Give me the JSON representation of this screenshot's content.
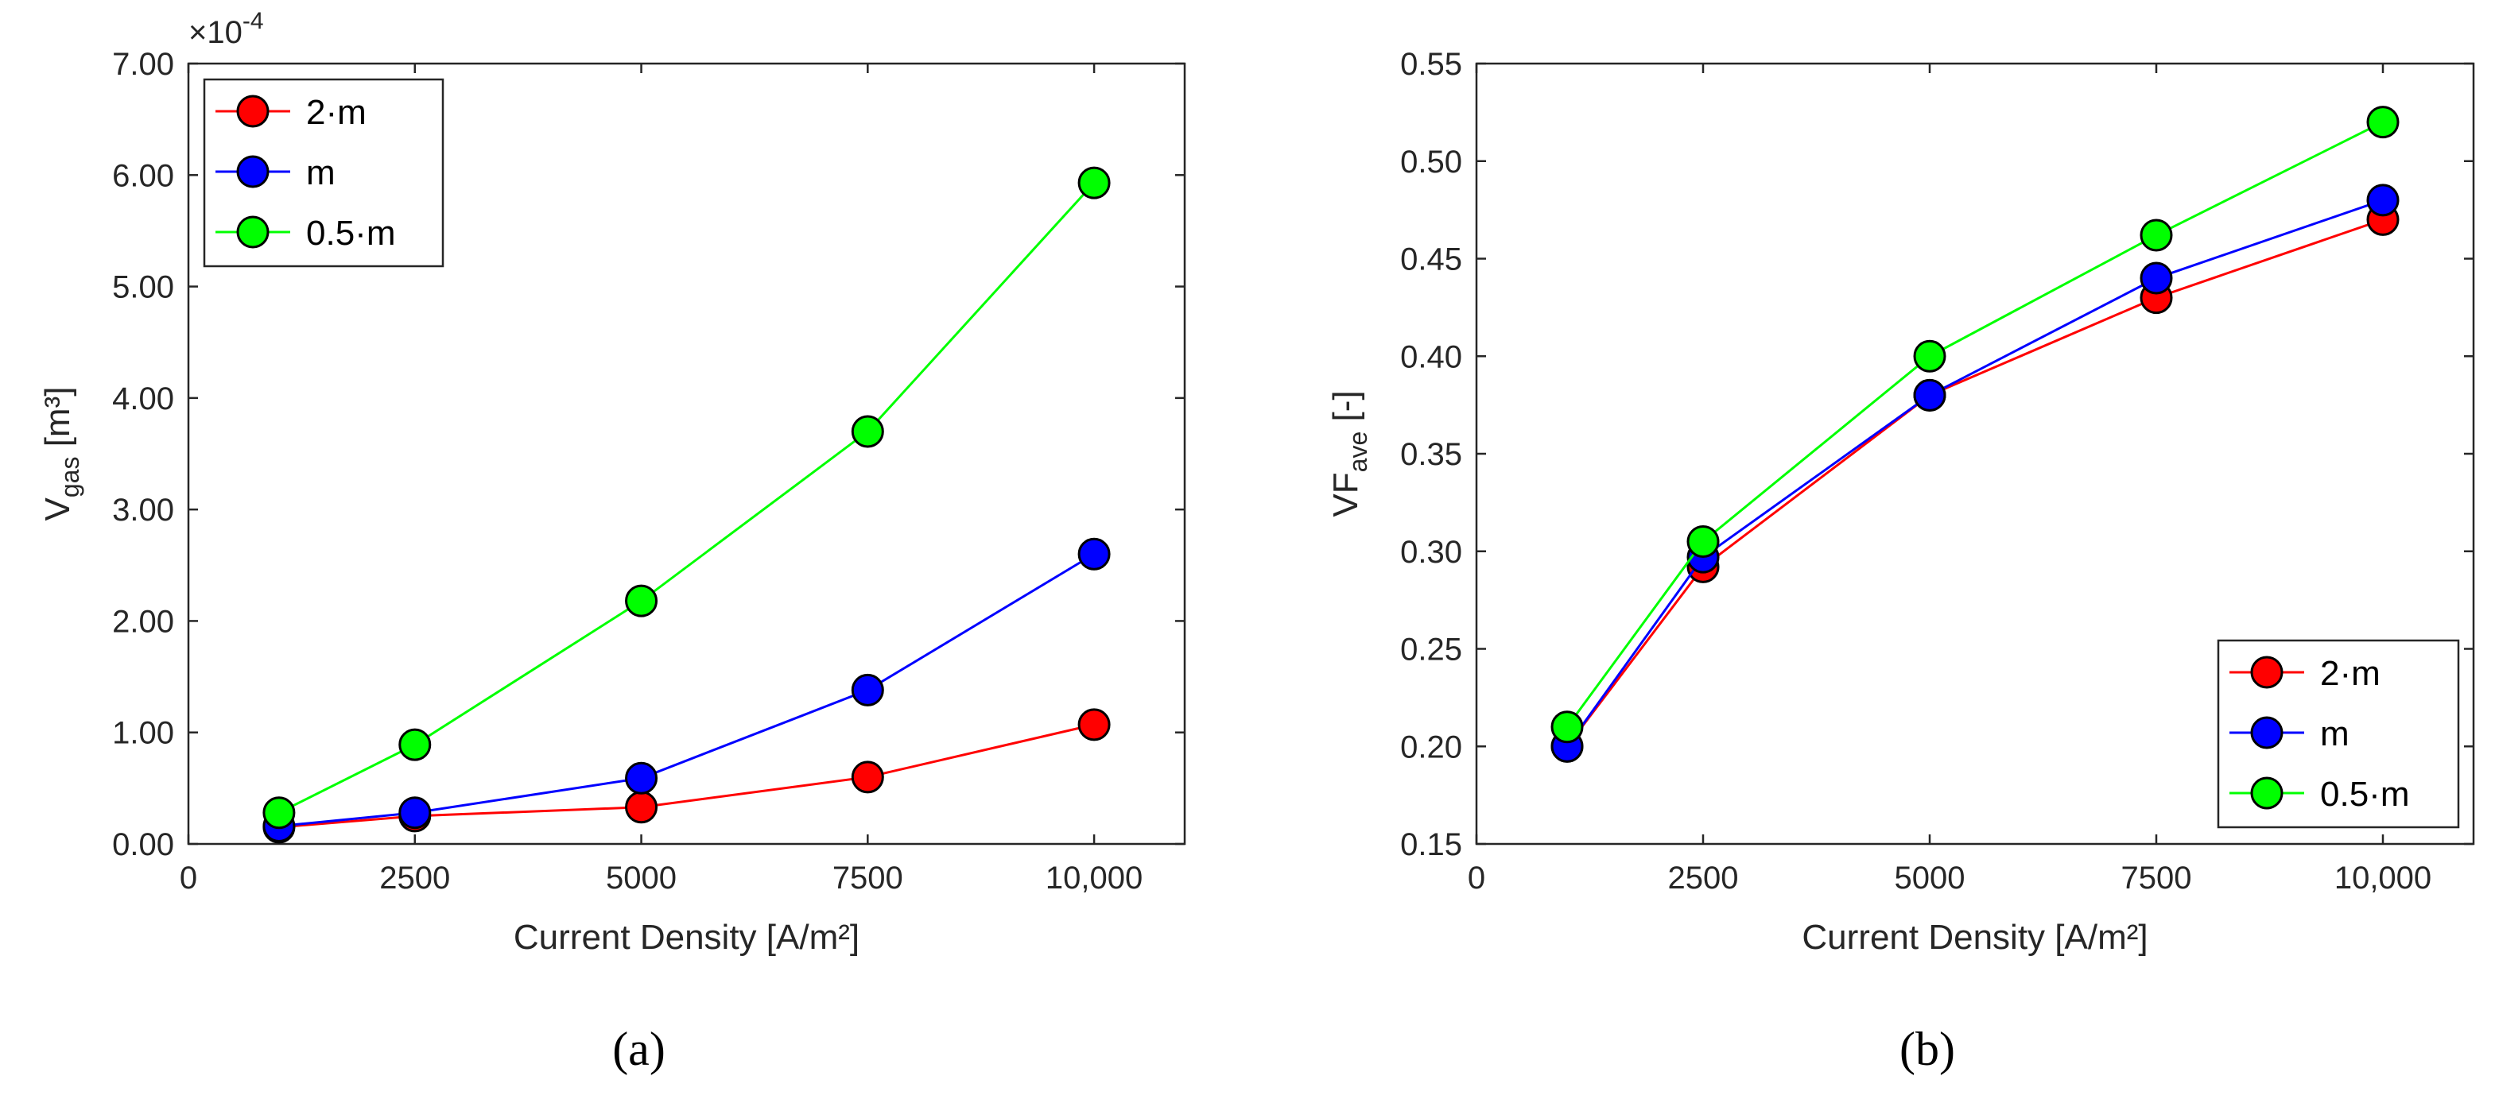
{
  "chart_data": [
    {
      "type": "line",
      "caption": "(a)",
      "xlabel": "Current Density [A/m²]",
      "ylabel_main": "V",
      "ylabel_sub": "gas",
      "ylabel_unit": " [m³]",
      "y_multiplier": "×10",
      "y_exponent": "-4",
      "x": [
        1000,
        2500,
        5000,
        7500,
        10000
      ],
      "xlim": [
        0,
        11000
      ],
      "ylim": [
        0,
        7
      ],
      "xticks": [
        0,
        2500,
        5000,
        7500,
        10000
      ],
      "xtick_labels": [
        "0",
        "2500",
        "5000",
        "7500",
        "10,000"
      ],
      "yticks": [
        0,
        1,
        2,
        3,
        4,
        5,
        6,
        7
      ],
      "ytick_labels": [
        "0.00",
        "1.00",
        "2.00",
        "3.00",
        "4.00",
        "5.00",
        "6.00",
        "7.00"
      ],
      "legend_position": "top-left",
      "series": [
        {
          "name": "2·m",
          "color": "#ff0000",
          "values": [
            0.15,
            0.25,
            0.33,
            0.6,
            1.07
          ]
        },
        {
          "name": "m",
          "color": "#0000ff",
          "values": [
            0.16,
            0.28,
            0.59,
            1.38,
            2.6
          ]
        },
        {
          "name": "0.5·m",
          "color": "#00ff00",
          "values": [
            0.28,
            0.89,
            2.18,
            3.7,
            5.93
          ]
        }
      ]
    },
    {
      "type": "line",
      "caption": "(b)",
      "xlabel": "Current Density [A/m²]",
      "ylabel_main": "VF",
      "ylabel_sub": "ave",
      "ylabel_unit": " [-]",
      "x": [
        1000,
        2500,
        5000,
        7500,
        10000
      ],
      "xlim": [
        0,
        11000
      ],
      "ylim": [
        0.15,
        0.55
      ],
      "xticks": [
        0,
        2500,
        5000,
        7500,
        10000
      ],
      "xtick_labels": [
        "0",
        "2500",
        "5000",
        "7500",
        "10,000"
      ],
      "yticks": [
        0.15,
        0.2,
        0.25,
        0.3,
        0.35,
        0.4,
        0.45,
        0.5,
        0.55
      ],
      "ytick_labels": [
        "0.15",
        "0.20",
        "0.25",
        "0.30",
        "0.35",
        "0.40",
        "0.45",
        "0.50",
        "0.55"
      ],
      "legend_position": "bottom-right",
      "series": [
        {
          "name": "2·m",
          "color": "#ff0000",
          "values": [
            0.2,
            0.292,
            0.38,
            0.43,
            0.47
          ]
        },
        {
          "name": "m",
          "color": "#0000ff",
          "values": [
            0.2,
            0.297,
            0.38,
            0.44,
            0.48
          ]
        },
        {
          "name": "0.5·m",
          "color": "#00ff00",
          "values": [
            0.21,
            0.305,
            0.4,
            0.462,
            0.52
          ]
        }
      ]
    }
  ]
}
